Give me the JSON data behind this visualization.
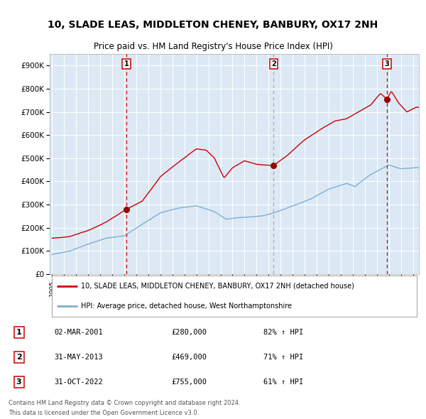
{
  "title": "10, SLADE LEAS, MIDDLETON CHENEY, BANBURY, OX17 2NH",
  "subtitle": "Price paid vs. HM Land Registry's House Price Index (HPI)",
  "legend_property": "10, SLADE LEAS, MIDDLETON CHENEY, BANBURY, OX17 2NH (detached house)",
  "legend_hpi": "HPI: Average price, detached house, West Northamptonshire",
  "transactions": [
    {
      "num": 1,
      "date": "02-MAR-2001",
      "price": 280000,
      "pct": 82,
      "x": 2001.17
    },
    {
      "num": 2,
      "date": "31-MAY-2013",
      "price": 469000,
      "pct": 71,
      "x": 2013.42
    },
    {
      "num": 3,
      "date": "31-OCT-2022",
      "price": 755000,
      "pct": 61,
      "x": 2022.83
    }
  ],
  "footnote1": "Contains HM Land Registry data © Crown copyright and database right 2024.",
  "footnote2": "This data is licensed under the Open Government Licence v3.0.",
  "bg_color": "#dce9f5",
  "red_line_color": "#cc0000",
  "blue_line_color": "#7bafd4",
  "grid_color": "#ffffff",
  "marker_color": "#990000",
  "ylim": [
    0,
    950000
  ],
  "yticks": [
    0,
    100000,
    200000,
    300000,
    400000,
    500000,
    600000,
    700000,
    800000,
    900000
  ],
  "xlim_start": 1994.8,
  "xlim_end": 2025.5,
  "prop_key_t": [
    1995.0,
    1996.5,
    1998.0,
    1999.5,
    2001.17,
    2002.5,
    2004.0,
    2005.5,
    2007.0,
    2007.8,
    2008.5,
    2009.3,
    2010.0,
    2011.0,
    2012.0,
    2013.0,
    2013.42,
    2014.5,
    2016.0,
    2017.5,
    2018.5,
    2019.5,
    2020.5,
    2021.5,
    2022.3,
    2022.83,
    2023.2,
    2023.8,
    2024.5,
    2025.3
  ],
  "prop_key_v": [
    155000,
    163000,
    190000,
    225000,
    280000,
    315000,
    420000,
    480000,
    540000,
    535000,
    500000,
    415000,
    460000,
    490000,
    475000,
    470000,
    469000,
    510000,
    580000,
    630000,
    660000,
    670000,
    700000,
    730000,
    780000,
    755000,
    790000,
    740000,
    700000,
    720000
  ],
  "hpi_key_t": [
    1995.0,
    1996.5,
    1998.0,
    1999.5,
    2001.0,
    2002.5,
    2004.0,
    2005.5,
    2007.0,
    2007.8,
    2008.5,
    2009.5,
    2010.5,
    2011.5,
    2012.5,
    2013.42,
    2015.0,
    2016.5,
    2018.0,
    2019.5,
    2020.2,
    2020.8,
    2021.5,
    2022.5,
    2023.0,
    2024.0,
    2025.3
  ],
  "hpi_key_v": [
    85000,
    100000,
    130000,
    155000,
    165000,
    215000,
    265000,
    285000,
    295000,
    282000,
    270000,
    238000,
    245000,
    248000,
    252000,
    265000,
    295000,
    325000,
    368000,
    392000,
    378000,
    405000,
    430000,
    458000,
    472000,
    455000,
    460000
  ]
}
